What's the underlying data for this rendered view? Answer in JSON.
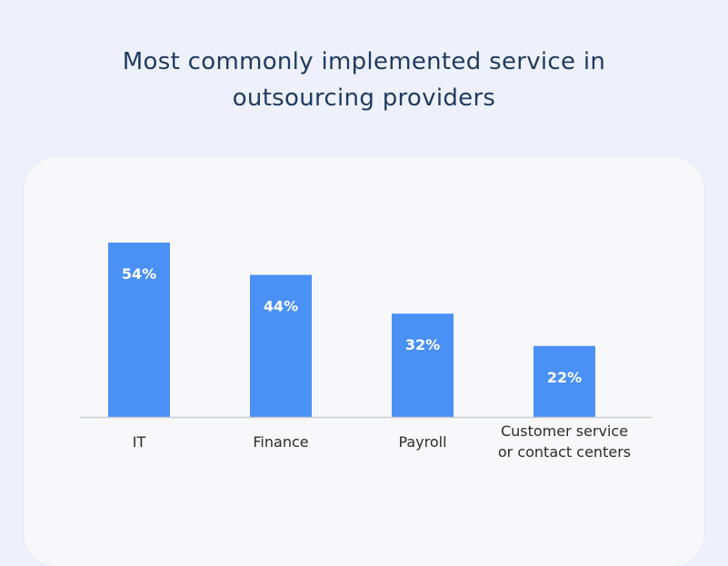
{
  "chart_data": {
    "type": "bar",
    "title_lines": [
      "Most commonly implemented service in",
      "outsourcing providers"
    ],
    "categories": [
      "IT",
      "Finance",
      "Payroll",
      "Customer service or contact centers"
    ],
    "category_lines": [
      [
        "IT"
      ],
      [
        "Finance"
      ],
      [
        "Payroll"
      ],
      [
        "Customer service",
        "or contact centers"
      ]
    ],
    "values": [
      54,
      44,
      32,
      22
    ],
    "value_labels": [
      "54%",
      "44%",
      "32%",
      "22%"
    ],
    "xlabel": "",
    "ylabel": "",
    "ylim": [
      0,
      54
    ],
    "grid": false,
    "legend": "none",
    "bar_color": "#4a90f5"
  }
}
